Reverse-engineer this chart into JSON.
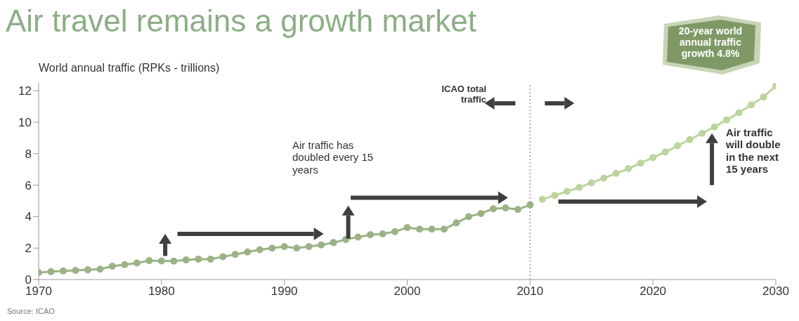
{
  "chart_data": {
    "type": "line",
    "title": "Air travel remains a growth market",
    "ylabel": "World annual traffic (RPKs - trillions)",
    "annotations": [
      "ICAO total traffic",
      "Air traffic has doubled every 15 years",
      "Air traffic will double in the next 15 years",
      "20-year world annual traffic growth 4.8%",
      "Source: ICAO"
    ],
    "xlim": [
      1970,
      2030
    ],
    "xticks": [
      1970,
      1980,
      1990,
      2000,
      2010,
      2020,
      2030
    ],
    "ylim": [
      0,
      12.5
    ],
    "yticks": [
      0,
      2,
      4,
      6,
      8,
      10,
      12
    ],
    "marker": "circle",
    "line_style": "solid",
    "ref_lines": [
      {
        "axis": "x",
        "value": 2010,
        "color": "#999999",
        "line_style": "dotted"
      }
    ],
    "series": [
      {
        "color": "#9bb286",
        "x": [
          1970,
          1971,
          1972,
          1973,
          1974,
          1975,
          1976,
          1977,
          1978,
          1979,
          1980,
          1981,
          1982,
          1983,
          1984,
          1985,
          1986,
          1987,
          1988,
          1989,
          1990,
          1991,
          1992,
          1993,
          1994,
          1995,
          1996,
          1997,
          1998,
          1999,
          2000,
          2001,
          2002,
          2003,
          2004,
          2005,
          2006,
          2007,
          2008,
          2009,
          2010
        ],
        "values": [
          0.45,
          0.5,
          0.55,
          0.58,
          0.62,
          0.66,
          0.85,
          0.95,
          1.05,
          1.2,
          1.18,
          1.17,
          1.25,
          1.3,
          1.3,
          1.45,
          1.6,
          1.75,
          1.9,
          2.0,
          2.1,
          2.0,
          2.1,
          2.2,
          2.35,
          2.55,
          2.7,
          2.85,
          2.9,
          3.05,
          3.3,
          3.2,
          3.2,
          3.2,
          3.6,
          4.0,
          4.2,
          4.5,
          4.55,
          4.45,
          4.75
        ]
      },
      {
        "color": "#bcd49e",
        "x": [
          2011,
          2012,
          2013,
          2014,
          2015,
          2016,
          2017,
          2018,
          2019,
          2020,
          2021,
          2022,
          2023,
          2024,
          2025,
          2026,
          2027,
          2028,
          2029,
          2030
        ],
        "values": [
          5.1,
          5.35,
          5.6,
          5.85,
          6.15,
          6.45,
          6.75,
          7.05,
          7.4,
          7.75,
          8.1,
          8.5,
          8.9,
          9.3,
          9.7,
          10.15,
          10.6,
          11.1,
          11.6,
          12.3
        ]
      }
    ]
  }
}
